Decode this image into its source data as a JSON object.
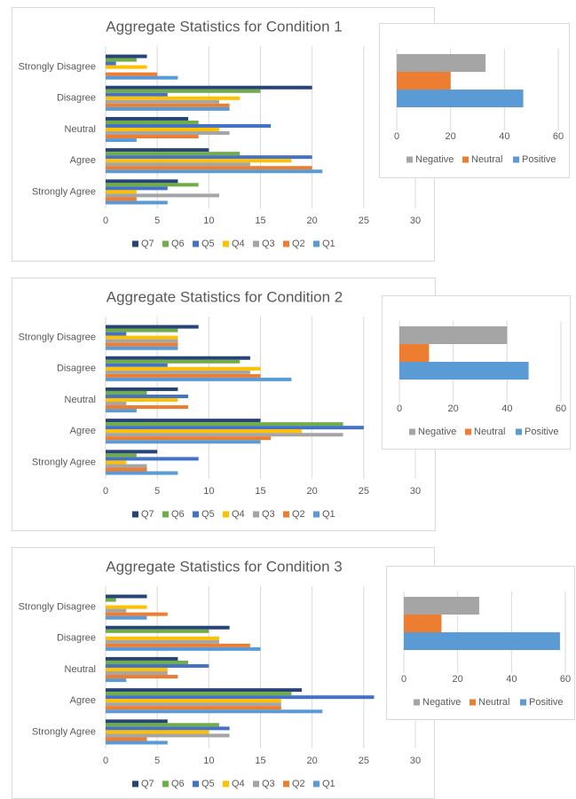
{
  "chart_data": [
    {
      "type": "bar",
      "orientation": "horizontal",
      "title": "Aggregate Statistics for Condition 1",
      "categories": [
        "Strongly Disagree",
        "Disagree",
        "Neutral",
        "Agree",
        "Strongly Agree"
      ],
      "series": [
        {
          "name": "Q7",
          "color": "#264478",
          "values": [
            4,
            20,
            8,
            10,
            7
          ]
        },
        {
          "name": "Q6",
          "color": "#70ad47",
          "values": [
            3,
            15,
            9,
            13,
            9
          ]
        },
        {
          "name": "Q5",
          "color": "#4472c4",
          "values": [
            1,
            6,
            16,
            20,
            6
          ]
        },
        {
          "name": "Q4",
          "color": "#ffc000",
          "values": [
            4,
            13,
            11,
            18,
            3
          ]
        },
        {
          "name": "Q3",
          "color": "#a5a5a5",
          "values": [
            0,
            11,
            12,
            14,
            11
          ]
        },
        {
          "name": "Q2",
          "color": "#ed7d31",
          "values": [
            5,
            12,
            9,
            20,
            3
          ]
        },
        {
          "name": "Q1",
          "color": "#5b9bd5",
          "values": [
            7,
            12,
            3,
            21,
            6
          ]
        }
      ],
      "xlim": [
        0,
        30
      ],
      "xticks": [
        0,
        5,
        10,
        15,
        20,
        25,
        30
      ],
      "grid": true,
      "legend": "bottom"
    },
    {
      "type": "bar",
      "orientation": "horizontal",
      "categories": [
        "Negative",
        "Neutral",
        "Positive"
      ],
      "values": [
        33,
        20,
        47
      ],
      "colors": [
        "#a5a5a5",
        "#ed7d31",
        "#5b9bd5"
      ],
      "xlim": [
        0,
        60
      ],
      "xticks": [
        0,
        20,
        40,
        60
      ],
      "grid": true,
      "legend": "bottom"
    },
    {
      "type": "bar",
      "orientation": "horizontal",
      "title": "Aggregate Statistics for Condition 2",
      "categories": [
        "Strongly Disagree",
        "Disagree",
        "Neutral",
        "Agree",
        "Strongly Agree"
      ],
      "series": [
        {
          "name": "Q7",
          "color": "#264478",
          "values": [
            9,
            14,
            7,
            15,
            5
          ]
        },
        {
          "name": "Q6",
          "color": "#70ad47",
          "values": [
            7,
            13,
            4,
            23,
            3
          ]
        },
        {
          "name": "Q5",
          "color": "#4472c4",
          "values": [
            2,
            6,
            8,
            25,
            9
          ]
        },
        {
          "name": "Q4",
          "color": "#ffc000",
          "values": [
            7,
            15,
            7,
            19,
            2
          ]
        },
        {
          "name": "Q3",
          "color": "#a5a5a5",
          "values": [
            7,
            14,
            2,
            23,
            4
          ]
        },
        {
          "name": "Q2",
          "color": "#ed7d31",
          "values": [
            7,
            15,
            8,
            16,
            4
          ]
        },
        {
          "name": "Q1",
          "color": "#5b9bd5",
          "values": [
            7,
            18,
            3,
            15,
            7
          ]
        }
      ],
      "xlim": [
        0,
        30
      ],
      "xticks": [
        0,
        5,
        10,
        15,
        20,
        25,
        30
      ],
      "grid": true,
      "legend": "bottom"
    },
    {
      "type": "bar",
      "orientation": "horizontal",
      "categories": [
        "Negative",
        "Neutral",
        "Positive"
      ],
      "values": [
        40,
        11,
        48
      ],
      "colors": [
        "#a5a5a5",
        "#ed7d31",
        "#5b9bd5"
      ],
      "xlim": [
        0,
        60
      ],
      "xticks": [
        0,
        20,
        40,
        60
      ],
      "grid": true,
      "legend": "bottom"
    },
    {
      "type": "bar",
      "orientation": "horizontal",
      "title": "Aggregate Statistics for Condition 3",
      "categories": [
        "Strongly Disagree",
        "Disagree",
        "Neutral",
        "Agree",
        "Strongly Agree"
      ],
      "series": [
        {
          "name": "Q7",
          "color": "#264478",
          "values": [
            4,
            12,
            7,
            19,
            6
          ]
        },
        {
          "name": "Q6",
          "color": "#70ad47",
          "values": [
            1,
            10,
            8,
            18,
            11
          ]
        },
        {
          "name": "Q5",
          "color": "#4472c4",
          "values": [
            0,
            0,
            10,
            26,
            12
          ]
        },
        {
          "name": "Q4",
          "color": "#ffc000",
          "values": [
            4,
            11,
            6,
            17,
            10
          ]
        },
        {
          "name": "Q3",
          "color": "#a5a5a5",
          "values": [
            2,
            11,
            6,
            17,
            12
          ]
        },
        {
          "name": "Q2",
          "color": "#ed7d31",
          "values": [
            6,
            14,
            7,
            17,
            4
          ]
        },
        {
          "name": "Q1",
          "color": "#5b9bd5",
          "values": [
            4,
            15,
            2,
            21,
            6
          ]
        }
      ],
      "xlim": [
        0,
        30
      ],
      "xticks": [
        0,
        5,
        10,
        15,
        20,
        25,
        30
      ],
      "grid": true,
      "legend": "bottom"
    },
    {
      "type": "bar",
      "orientation": "horizontal",
      "categories": [
        "Negative",
        "Neutral",
        "Positive"
      ],
      "values": [
        28,
        14,
        58
      ],
      "colors": [
        "#a5a5a5",
        "#ed7d31",
        "#5b9bd5"
      ],
      "xlim": [
        0,
        60
      ],
      "xticks": [
        0,
        20,
        40,
        60
      ],
      "grid": true,
      "legend": "bottom"
    }
  ]
}
